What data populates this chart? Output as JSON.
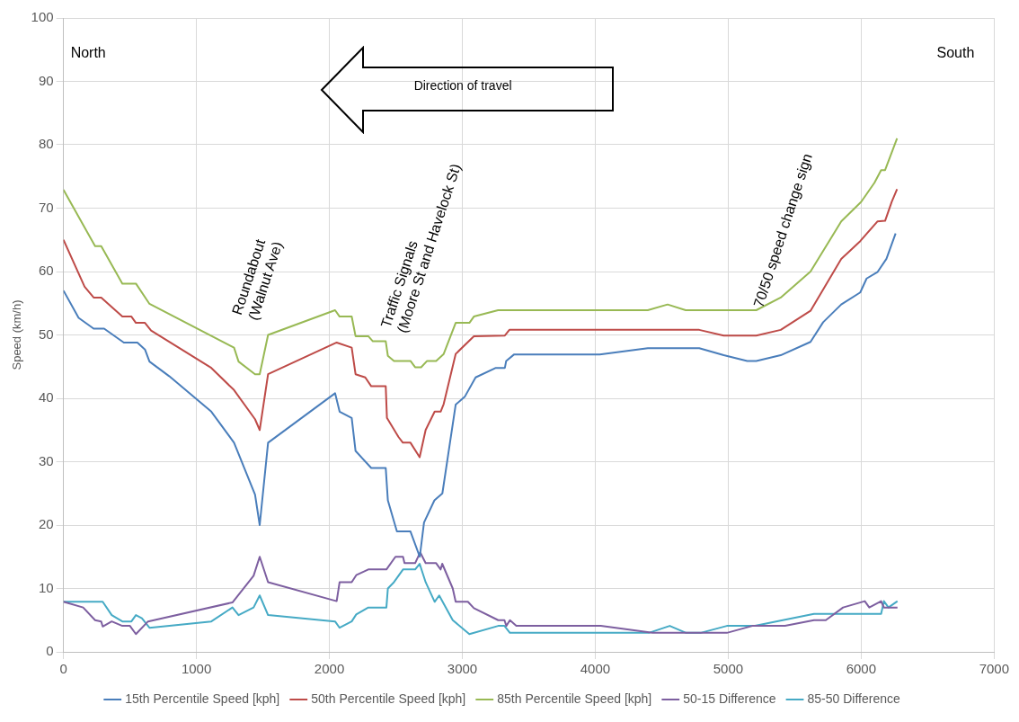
{
  "chart_data": {
    "type": "line",
    "ylabel": "Speed (km/h)",
    "xlim": [
      0,
      7000
    ],
    "xticks": [
      0,
      1000,
      2000,
      3000,
      4000,
      5000,
      6000,
      7000
    ],
    "ylim": [
      0,
      100
    ],
    "yticks": [
      0,
      10,
      20,
      30,
      40,
      50,
      60,
      70,
      80,
      90,
      100
    ],
    "grid": true,
    "legend": "bottom",
    "marker": "none",
    "line_style": "solid",
    "annotations": [
      "North",
      "South",
      "Direction of travel",
      "Roundabout\n(Walnut Ave)",
      "Traffic Signals\n(Moore St and Havelock St)",
      "70/50 speed change sign"
    ],
    "series": [
      {
        "name": "15th Percentile Speed [kph]",
        "color": "#4a7ebb",
        "x": [
          0,
          114,
          227,
          306,
          454,
          556,
          613,
          647,
          795,
          1112,
          1283,
          1441,
          1476,
          1539,
          2043,
          2077,
          2168,
          2197,
          2315,
          2424,
          2440,
          2508,
          2610,
          2680,
          2712,
          2790,
          2850,
          2950,
          3020,
          3100,
          3252,
          3320,
          3330,
          3388,
          4034,
          4395,
          4782,
          4966,
          5143,
          5211,
          5395,
          5619,
          5714,
          5850,
          5993,
          6041,
          6122,
          6190,
          6259
        ],
        "values": [
          57,
          52.7,
          51,
          51,
          48.8,
          48.8,
          47.7,
          45.8,
          43.5,
          37.9,
          33,
          24.8,
          20,
          33,
          40.8,
          37.9,
          36.9,
          31.7,
          29,
          29,
          23.9,
          19,
          19,
          15,
          20.4,
          23.9,
          25,
          39,
          40.3,
          43.3,
          44.8,
          44.8,
          45.9,
          46.9,
          46.9,
          47.9,
          47.9,
          46.8,
          45.9,
          45.9,
          46.8,
          48.9,
          52,
          54.8,
          56.7,
          58.9,
          59.9,
          62,
          66
        ]
      },
      {
        "name": "50th Percentile Speed [kph]",
        "color": "#be4b48",
        "x": [
          0,
          159,
          227,
          284,
          352,
          443,
          511,
          545,
          613,
          659,
          1112,
          1283,
          1441,
          1476,
          1539,
          2055,
          2168,
          2197,
          2270,
          2315,
          2424,
          2433,
          2520,
          2553,
          2610,
          2679,
          2724,
          2792,
          2837,
          2860,
          2950,
          3087,
          3320,
          3354,
          4782,
          4966,
          5211,
          5395,
          5619,
          5850,
          5993,
          6122,
          6180,
          6230,
          6270
        ],
        "values": [
          65,
          57.6,
          55.9,
          55.9,
          54.6,
          52.9,
          52.9,
          51.9,
          51.9,
          50.7,
          44.8,
          41.3,
          36.7,
          35,
          43.8,
          48.8,
          48,
          43.8,
          43.3,
          41.9,
          41.9,
          36.9,
          33.9,
          33,
          33,
          30.7,
          35,
          37.9,
          37.9,
          39.1,
          47,
          49.8,
          49.9,
          50.8,
          50.8,
          49.9,
          49.9,
          50.8,
          53.8,
          62,
          64.8,
          67.9,
          68,
          71,
          73
        ]
      },
      {
        "name": "85th Percentile Speed [kph]",
        "color": "#98b954",
        "x": [
          0,
          238,
          284,
          443,
          545,
          647,
          1283,
          1317,
          1441,
          1476,
          1539,
          2043,
          2077,
          2168,
          2197,
          2293,
          2327,
          2424,
          2440,
          2486,
          2610,
          2645,
          2690,
          2735,
          2803,
          2860,
          2950,
          3053,
          3087,
          3269,
          4395,
          4544,
          4680,
          5211,
          5395,
          5619,
          5850,
          6000,
          6100,
          6150,
          6180,
          6270
        ],
        "values": [
          72.9,
          64,
          64,
          58.1,
          58.1,
          54.9,
          48,
          45.8,
          43.8,
          43.8,
          50,
          53.9,
          52.9,
          52.9,
          49.8,
          49.8,
          49,
          49,
          46.7,
          45.9,
          45.9,
          44.9,
          44.9,
          45.9,
          45.9,
          47,
          51.9,
          51.9,
          52.9,
          53.9,
          53.9,
          54.8,
          53.9,
          53.9,
          55.9,
          60,
          67.9,
          71,
          74,
          76,
          76,
          81
        ]
      },
      {
        "name": "50-15 Difference",
        "color": "#7d5fa0",
        "x": [
          0,
          148,
          238,
          284,
          295,
          363,
          443,
          500,
          545,
          636,
          1271,
          1430,
          1476,
          1539,
          2055,
          2077,
          2168,
          2202,
          2293,
          2429,
          2497,
          2554,
          2565,
          2645,
          2683,
          2724,
          2803,
          2837,
          2849,
          2928,
          2950,
          3042,
          3087,
          3270,
          3317,
          3331,
          3358,
          3406,
          4041,
          4430,
          4990,
          5181,
          5427,
          5645,
          5734,
          5864,
          6027,
          6061,
          6150,
          6171,
          6273
        ],
        "values": [
          7.9,
          7,
          5,
          4.8,
          4,
          4.8,
          4.1,
          4.1,
          2.8,
          4.8,
          7.8,
          12,
          15,
          11,
          8,
          11,
          11,
          12.1,
          13,
          13,
          15,
          15,
          14,
          14,
          15.7,
          14,
          14,
          13,
          13.9,
          10,
          7.9,
          7.9,
          6.9,
          5,
          5,
          4.1,
          5,
          4.1,
          4.1,
          3,
          3,
          4.1,
          4.1,
          5,
          5,
          7,
          8,
          7,
          8,
          7,
          7
        ]
      },
      {
        "name": "85-50 Difference",
        "color": "#46aac5",
        "x": [
          0,
          295,
          363,
          443,
          511,
          545,
          590,
          647,
          1112,
          1271,
          1317,
          1430,
          1476,
          1539,
          2043,
          2077,
          2168,
          2202,
          2293,
          2429,
          2440,
          2486,
          2520,
          2554,
          2645,
          2679,
          2724,
          2792,
          2826,
          2928,
          3053,
          3270,
          3317,
          3358,
          4403,
          4560,
          4683,
          4792,
          4990,
          5201,
          5645,
          6150,
          6171,
          6205,
          6273
        ],
        "values": [
          7.9,
          7.9,
          5.8,
          4.8,
          4.8,
          5.8,
          5.3,
          3.8,
          4.8,
          7,
          5.8,
          7,
          8.9,
          5.8,
          4.8,
          3.8,
          4.8,
          5.9,
          7,
          7,
          10,
          11,
          12,
          13,
          13,
          13.9,
          11,
          7.9,
          8.9,
          5,
          2.8,
          4.1,
          4.1,
          3,
          3,
          4.1,
          3,
          3,
          4.1,
          4.1,
          6,
          6,
          8,
          7,
          8
        ]
      }
    ]
  }
}
